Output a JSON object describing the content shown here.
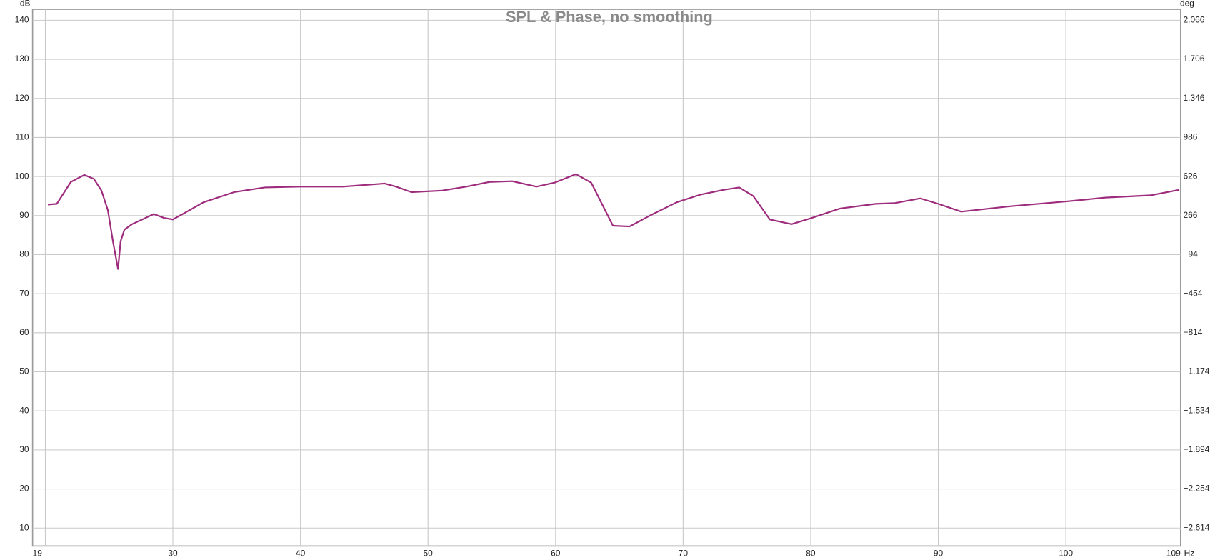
{
  "chart_data": {
    "type": "line",
    "title": "SPL & Phase, no smoothing",
    "ylabel": "dB",
    "y2label": "deg",
    "xlabel": "Hz",
    "color": "#9e2c7d",
    "xlim": [
      19,
      109
    ],
    "xticks": [
      19,
      30,
      40,
      50,
      60,
      70,
      80,
      90,
      100,
      109
    ],
    "xgrid": [
      20,
      30,
      40,
      50,
      60,
      70,
      80,
      90,
      100
    ],
    "ylim": [
      5.4,
      142.8
    ],
    "yticks": [
      10,
      20,
      30,
      40,
      50,
      60,
      70,
      80,
      90,
      100,
      110,
      120,
      130,
      140
    ],
    "y2lim": [
      -2779.6,
      2166.8
    ],
    "y2ticks": [
      {
        "value": -2614,
        "label": "−2.614"
      },
      {
        "value": -2254,
        "label": "−2.254"
      },
      {
        "value": -1894,
        "label": "−1.894"
      },
      {
        "value": -1534,
        "label": "−1.534"
      },
      {
        "value": -1174,
        "label": "−1.174"
      },
      {
        "value": -814,
        "label": "−814"
      },
      {
        "value": -454,
        "label": "−454"
      },
      {
        "value": -94,
        "label": "−94"
      },
      266,
      626,
      986,
      {
        "value": 1346,
        "label": "1.346"
      },
      {
        "value": 1706,
        "label": "1.706"
      },
      {
        "value": 2066,
        "label": "2.066"
      }
    ],
    "grid": true,
    "x": [
      20.2,
      20.9,
      22.0,
      23.05,
      23.8,
      24.4,
      24.9,
      25.3,
      25.7,
      25.9,
      26.2,
      26.8,
      27.6,
      28.5,
      29.3,
      30.0,
      31.1,
      32.4,
      34.8,
      37.2,
      40.0,
      43.3,
      46.6,
      47.5,
      48.7,
      51.1,
      53.0,
      54.8,
      56.6,
      58.5,
      59.9,
      61.6,
      62.8,
      64.5,
      65.8,
      67.4,
      69.5,
      71.4,
      73.2,
      74.4,
      75.5,
      76.8,
      78.5,
      79.9,
      82.3,
      85.1,
      86.6,
      88.6,
      90.0,
      91.8,
      95.7,
      100.0,
      103.1,
      106.7,
      108.9
    ],
    "values": [
      92.8,
      93.0,
      98.6,
      100.4,
      99.4,
      96.4,
      91.4,
      83.4,
      76.3,
      83.4,
      86.4,
      87.8,
      89.0,
      90.4,
      89.4,
      89.0,
      91.0,
      93.4,
      96.0,
      97.2,
      97.4,
      97.4,
      98.2,
      97.4,
      96.0,
      96.4,
      97.4,
      98.6,
      98.8,
      97.4,
      98.4,
      100.6,
      98.4,
      87.4,
      87.2,
      90.0,
      93.4,
      95.4,
      96.6,
      97.2,
      95.0,
      89.0,
      87.8,
      89.2,
      91.8,
      93.0,
      93.2,
      94.4,
      93.0,
      91.0,
      92.4,
      93.6,
      94.6,
      95.2,
      96.6
    ]
  }
}
